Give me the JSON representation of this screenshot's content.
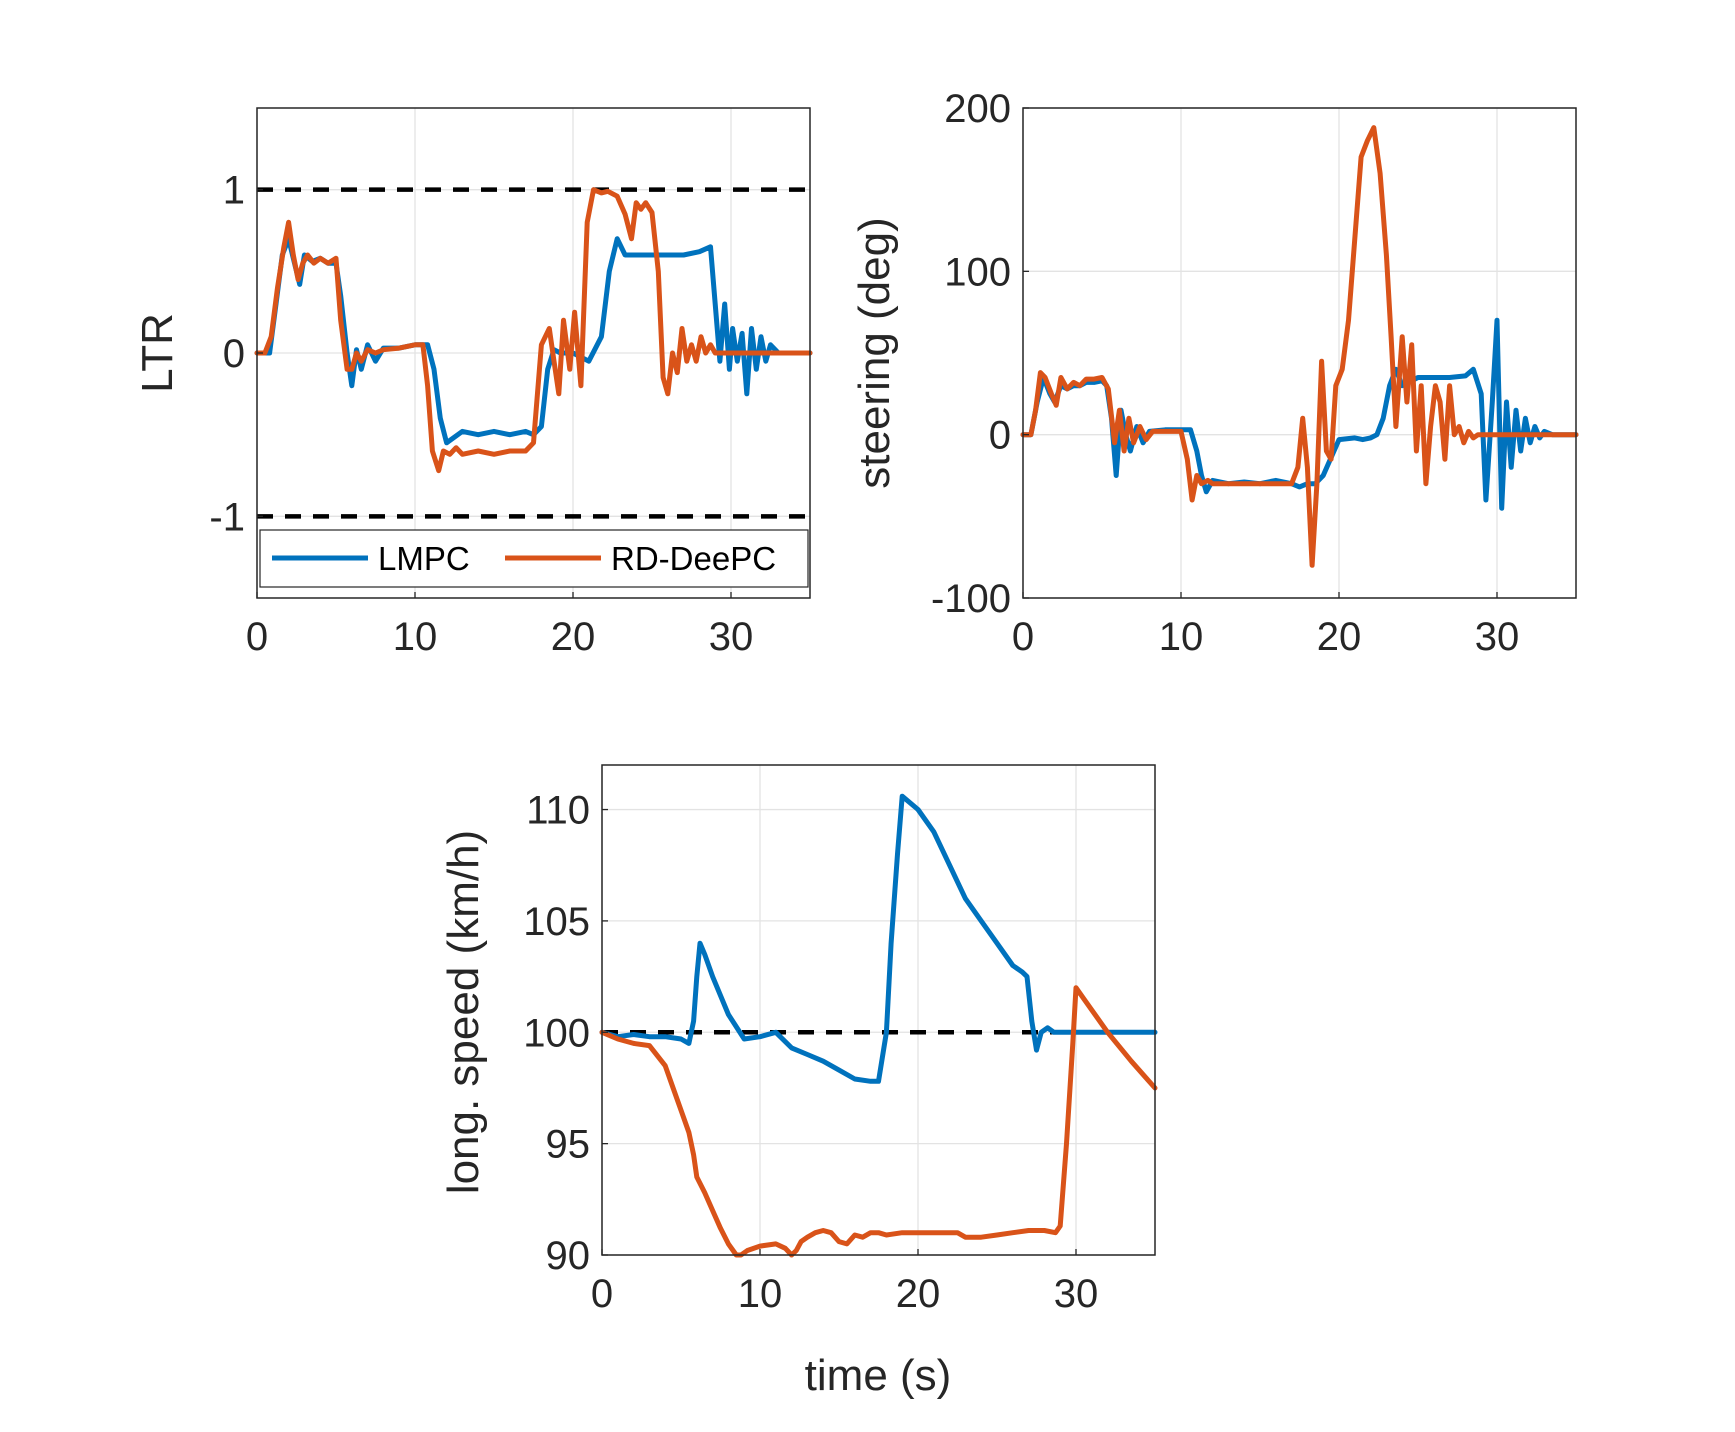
{
  "figure": {
    "background": "#ffffff",
    "grid_color": "#e3e3e3",
    "axis_color": "#262626",
    "limit_color": "#000000"
  },
  "legend": {
    "entries": [
      {
        "name": "LMPC",
        "color": "#0072BD"
      },
      {
        "name": "RD-DeePC",
        "color": "#D95319"
      }
    ],
    "location": "bottom, inside LTR panel"
  },
  "chart_data": [
    {
      "id": "ltr",
      "type": "line",
      "title": "",
      "xlabel": "",
      "ylabel": "LTR",
      "xlim": [
        0,
        35
      ],
      "ylim": [
        -1.5,
        1.5
      ],
      "xticks": [
        0,
        10,
        20,
        30
      ],
      "yticks": [
        -1,
        0,
        1
      ],
      "ytick_labels": [
        "-1",
        "0",
        "1"
      ],
      "grid": true,
      "reference_lines": [
        {
          "y": 1,
          "style": "dashed"
        },
        {
          "y": -1,
          "style": "dashed"
        }
      ],
      "series": [
        {
          "name": "LMPC",
          "color": "#0072BD",
          "x": [
            0,
            0.8,
            1.2,
            1.6,
            2.0,
            2.3,
            2.7,
            3.0,
            3.5,
            4.0,
            4.5,
            5.0,
            5.3,
            5.7,
            6.0,
            6.3,
            6.6,
            7.0,
            7.5,
            8.0,
            9.0,
            10.0,
            10.8,
            11.2,
            11.6,
            12.0,
            13.0,
            14.0,
            15.0,
            16.0,
            17.0,
            17.5,
            18.0,
            18.4,
            18.8,
            19.2,
            20.0,
            21.0,
            21.8,
            22.3,
            22.8,
            23.3,
            24.0,
            25.0,
            26.0,
            27.0,
            28.0,
            28.7,
            29.0,
            29.3,
            29.6,
            29.9,
            30.1,
            30.4,
            30.7,
            31.0,
            31.3,
            31.6,
            31.9,
            32.2,
            32.5,
            33.0,
            35.0
          ],
          "values": [
            0,
            0,
            0.3,
            0.6,
            0.7,
            0.58,
            0.42,
            0.6,
            0.56,
            0.58,
            0.55,
            0.55,
            0.35,
            0.0,
            -0.2,
            0.02,
            -0.1,
            0.05,
            -0.05,
            0.03,
            0.03,
            0.05,
            0.05,
            -0.1,
            -0.4,
            -0.55,
            -0.48,
            -0.5,
            -0.48,
            -0.5,
            -0.48,
            -0.5,
            -0.45,
            -0.1,
            0.02,
            0.0,
            0.0,
            -0.05,
            0.1,
            0.5,
            0.7,
            0.6,
            0.6,
            0.6,
            0.6,
            0.6,
            0.62,
            0.65,
            0.3,
            -0.05,
            0.3,
            -0.1,
            0.15,
            -0.05,
            0.12,
            -0.25,
            0.15,
            -0.1,
            0.1,
            -0.05,
            0.05,
            0.0,
            0.0
          ]
        },
        {
          "name": "RD-DeePC",
          "color": "#D95319",
          "x": [
            0,
            0.5,
            0.9,
            1.3,
            1.7,
            2.0,
            2.3,
            2.6,
            2.9,
            3.2,
            3.6,
            4.0,
            4.5,
            5.0,
            5.3,
            5.7,
            6.0,
            6.3,
            6.6,
            7.0,
            7.5,
            8.0,
            9.0,
            10.0,
            10.5,
            10.8,
            11.1,
            11.5,
            11.8,
            12.2,
            12.6,
            13.0,
            14.0,
            15.0,
            16.0,
            17.0,
            17.5,
            18.0,
            18.5,
            18.8,
            19.1,
            19.4,
            19.8,
            20.1,
            20.5,
            20.9,
            21.3,
            21.8,
            22.2,
            22.8,
            23.3,
            23.7,
            24.0,
            24.3,
            24.6,
            25.0,
            25.4,
            25.7,
            26.0,
            26.3,
            26.6,
            26.9,
            27.2,
            27.5,
            27.8,
            28.1,
            28.4,
            28.7,
            29.0,
            30.0,
            31.0,
            33.0,
            35.0
          ],
          "values": [
            0,
            0,
            0.1,
            0.4,
            0.65,
            0.8,
            0.6,
            0.45,
            0.55,
            0.6,
            0.55,
            0.58,
            0.55,
            0.58,
            0.2,
            -0.1,
            -0.1,
            0.0,
            -0.05,
            0.02,
            0.0,
            0.02,
            0.03,
            0.05,
            0.05,
            -0.2,
            -0.6,
            -0.72,
            -0.6,
            -0.62,
            -0.58,
            -0.62,
            -0.6,
            -0.62,
            -0.6,
            -0.6,
            -0.55,
            0.05,
            0.15,
            -0.05,
            -0.25,
            0.2,
            -0.1,
            0.25,
            -0.2,
            0.8,
            1.0,
            0.98,
            0.99,
            0.96,
            0.85,
            0.7,
            0.92,
            0.88,
            0.92,
            0.86,
            0.5,
            -0.15,
            -0.25,
            0.0,
            -0.12,
            0.15,
            -0.05,
            0.05,
            -0.05,
            0.1,
            0.0,
            0.05,
            0.0,
            0.0,
            0.0,
            0.0,
            0.0
          ]
        }
      ]
    },
    {
      "id": "steering",
      "type": "line",
      "title": "",
      "xlabel": "",
      "ylabel": "steering (deg)",
      "xlim": [
        0,
        35
      ],
      "ylim": [
        -100,
        200
      ],
      "xticks": [
        0,
        10,
        20,
        30
      ],
      "yticks": [
        -100,
        0,
        100,
        200
      ],
      "ytick_labels": [
        "-100",
        "0",
        "100",
        "200"
      ],
      "grid": true,
      "series": [
        {
          "name": "LMPC",
          "color": "#0072BD",
          "x": [
            0,
            0.5,
            0.9,
            1.3,
            1.7,
            2.0,
            2.4,
            2.8,
            3.2,
            3.6,
            4.0,
            4.5,
            5.0,
            5.3,
            5.6,
            5.9,
            6.2,
            6.5,
            6.8,
            7.2,
            7.6,
            8.0,
            9.0,
            10.0,
            10.6,
            11.0,
            11.3,
            11.6,
            12.0,
            13.0,
            14.0,
            15.0,
            16.0,
            17.0,
            17.5,
            18.0,
            18.5,
            19.0,
            20.0,
            21.0,
            21.5,
            22.0,
            22.4,
            22.8,
            23.2,
            23.6,
            24.0,
            25.0,
            26.0,
            27.0,
            28.0,
            28.5,
            29.0,
            29.3,
            29.7,
            30.0,
            30.3,
            30.6,
            30.9,
            31.2,
            31.5,
            31.8,
            32.1,
            32.4,
            32.7,
            33.0,
            33.5,
            34.0,
            35.0
          ],
          "values": [
            0,
            0,
            20,
            35,
            25,
            20,
            30,
            28,
            30,
            30,
            32,
            32,
            33,
            30,
            10,
            -25,
            15,
            0,
            -10,
            5,
            -5,
            2,
            3,
            3,
            3,
            -10,
            -25,
            -35,
            -28,
            -30,
            -29,
            -30,
            -28,
            -30,
            -32,
            -30,
            -30,
            -25,
            -3,
            -2,
            -3,
            -2,
            0,
            10,
            30,
            40,
            30,
            35,
            35,
            35,
            36,
            40,
            25,
            -40,
            20,
            70,
            -45,
            20,
            -20,
            15,
            -10,
            10,
            -5,
            5,
            -2,
            2,
            0,
            0,
            0
          ]
        },
        {
          "name": "RD-DeePC",
          "color": "#D95319",
          "x": [
            0,
            0.5,
            0.8,
            1.1,
            1.4,
            1.8,
            2.1,
            2.4,
            2.8,
            3.2,
            3.6,
            4.0,
            4.5,
            5.0,
            5.4,
            5.8,
            6.1,
            6.4,
            6.7,
            7.0,
            7.4,
            7.8,
            8.2,
            9.0,
            10.0,
            10.4,
            10.7,
            11.0,
            11.3,
            11.7,
            12.0,
            13.0,
            14.0,
            15.0,
            16.0,
            17.0,
            17.4,
            17.7,
            18.0,
            18.3,
            18.6,
            18.9,
            19.2,
            19.5,
            19.8,
            20.2,
            20.6,
            21.0,
            21.4,
            21.8,
            22.2,
            22.6,
            23.0,
            23.3,
            23.6,
            24.0,
            24.3,
            24.6,
            24.9,
            25.2,
            25.5,
            25.8,
            26.1,
            26.4,
            26.7,
            27.0,
            27.3,
            27.6,
            27.9,
            28.2,
            28.5,
            28.8,
            29.1,
            29.4,
            29.7,
            30.0,
            30.5,
            31.0,
            32.0,
            33.0,
            35.0
          ],
          "values": [
            0,
            0,
            15,
            38,
            35,
            25,
            18,
            35,
            28,
            32,
            30,
            34,
            34,
            35,
            28,
            -5,
            15,
            -10,
            10,
            -5,
            5,
            -3,
            2,
            2,
            2,
            -15,
            -40,
            -25,
            -30,
            -28,
            -30,
            -30,
            -30,
            -30,
            -30,
            -30,
            -20,
            10,
            -20,
            -80,
            -30,
            45,
            -10,
            -15,
            30,
            40,
            70,
            120,
            170,
            180,
            188,
            160,
            110,
            60,
            5,
            60,
            20,
            55,
            -10,
            30,
            -30,
            5,
            30,
            20,
            -15,
            30,
            0,
            5,
            -5,
            2,
            -2,
            0,
            0,
            0,
            0,
            0,
            0,
            0,
            0,
            0,
            0
          ]
        }
      ]
    },
    {
      "id": "speed",
      "type": "line",
      "title": "",
      "xlabel": "time (s)",
      "ylabel": "long. speed (km/h)",
      "xlim": [
        0,
        35
      ],
      "ylim": [
        90,
        112
      ],
      "xticks": [
        0,
        10,
        20,
        30
      ],
      "yticks": [
        90,
        95,
        100,
        105,
        110
      ],
      "ytick_labels": [
        "90",
        "95",
        "100",
        "105",
        "110"
      ],
      "grid": true,
      "reference_lines": [
        {
          "y": 100,
          "style": "dashed"
        }
      ],
      "series": [
        {
          "name": "LMPC",
          "color": "#0072BD",
          "x": [
            0,
            1.0,
            2.0,
            3.0,
            4.0,
            5.0,
            5.5,
            5.8,
            6.0,
            6.2,
            6.5,
            7.0,
            8.0,
            9.0,
            10.0,
            11.0,
            12.0,
            13.0,
            14.0,
            15.0,
            16.0,
            17.0,
            17.5,
            18.0,
            18.3,
            18.7,
            19.0,
            20.0,
            21.0,
            22.0,
            23.0,
            24.0,
            25.0,
            26.0,
            26.6,
            26.9,
            27.2,
            27.5,
            27.8,
            28.2,
            28.6,
            29.0,
            30.0,
            32.0,
            35.0
          ],
          "values": [
            100,
            99.8,
            99.9,
            99.8,
            99.8,
            99.7,
            99.5,
            100.5,
            102.5,
            104.0,
            103.5,
            102.5,
            100.8,
            99.7,
            99.8,
            100.0,
            99.3,
            99.0,
            98.7,
            98.3,
            97.9,
            97.8,
            97.8,
            100.0,
            104.0,
            108.0,
            110.6,
            110.0,
            109.0,
            107.5,
            106.0,
            105.0,
            104.0,
            103.0,
            102.7,
            102.5,
            100.5,
            99.2,
            100.0,
            100.2,
            100.0,
            100.0,
            100.0,
            100.0,
            100.0
          ]
        },
        {
          "name": "RD-DeePC",
          "color": "#D95319",
          "x": [
            0,
            1.0,
            2.0,
            3.0,
            4.0,
            4.5,
            5.0,
            5.5,
            5.8,
            6.0,
            6.5,
            7.0,
            7.5,
            8.0,
            8.5,
            8.8,
            9.2,
            10.0,
            11.0,
            11.6,
            12.0,
            12.3,
            12.6,
            13.0,
            13.5,
            14.0,
            14.5,
            15.0,
            15.5,
            16.0,
            16.5,
            17.0,
            17.5,
            18.0,
            19.0,
            20.0,
            21.0,
            22.0,
            22.5,
            23.0,
            24.0,
            25.0,
            26.0,
            27.0,
            28.0,
            28.7,
            29.0,
            29.4,
            29.8,
            30.0,
            30.5,
            32.0,
            33.5,
            35.0
          ],
          "values": [
            100,
            99.7,
            99.5,
            99.4,
            98.5,
            97.5,
            96.5,
            95.5,
            94.5,
            93.5,
            92.8,
            92.0,
            91.2,
            90.5,
            90.0,
            90.0,
            90.2,
            90.4,
            90.5,
            90.3,
            90.0,
            90.2,
            90.6,
            90.8,
            91.0,
            91.1,
            91.0,
            90.6,
            90.5,
            90.9,
            90.8,
            91.0,
            91.0,
            90.9,
            91.0,
            91.0,
            91.0,
            91.0,
            91.0,
            90.8,
            90.8,
            90.9,
            91.0,
            91.1,
            91.1,
            91.0,
            91.3,
            95.0,
            99.5,
            102.0,
            101.5,
            100.0,
            98.7,
            97.5
          ]
        }
      ]
    }
  ]
}
